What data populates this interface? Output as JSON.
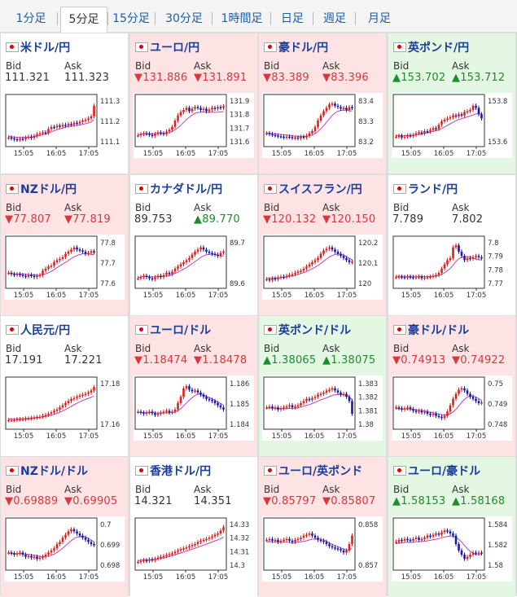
{
  "tabs": [
    {
      "label": "1分足",
      "active": false
    },
    {
      "label": "5分足",
      "active": true
    },
    {
      "label": "15分足",
      "active": false
    },
    {
      "label": "30分足",
      "active": false
    },
    {
      "label": "1時間足",
      "active": false
    },
    {
      "label": "日足",
      "active": false
    },
    {
      "label": "週足",
      "active": false
    },
    {
      "label": "月足",
      "active": false
    }
  ],
  "colors": {
    "down": "#d9363e",
    "up": "#1e8c2d",
    "link": "#1b3e9a",
    "candle_up": "#e02020",
    "candle_down": "#1a1aa8",
    "ma": "#c040c0"
  },
  "labels": {
    "bid": "Bid",
    "ask": "Ask"
  },
  "time_ticks": [
    "15:05",
    "16:05",
    "17:05"
  ],
  "pairs": [
    {
      "name": "米ドル/円",
      "flag": "us-flag-icon",
      "trend": "neutral",
      "bid": "111.321",
      "ask": "111.323",
      "bid_dir": "",
      "ask_dir": "",
      "y_ticks": [
        "111.3",
        "111.2",
        "111.1"
      ],
      "shape": [
        0.1,
        0.08,
        0.06,
        0.05,
        0.07,
        0.06,
        0.1,
        0.12,
        0.09,
        0.14,
        0.18,
        0.2,
        0.22,
        0.21,
        0.3,
        0.35,
        0.34,
        0.38,
        0.36,
        0.4,
        0.38,
        0.42,
        0.4,
        0.45,
        0.43,
        0.47,
        0.5,
        0.52,
        0.55,
        0.6,
        0.85
      ]
    },
    {
      "name": "ユーロ/円",
      "flag": "eu-flag-icon",
      "trend": "down",
      "bid": "▼131.886",
      "ask": "▼131.891",
      "bid_dir": "down",
      "ask_dir": "down",
      "y_ticks": [
        "131.9",
        "131.8",
        "131.7",
        "131.6"
      ],
      "shape": [
        0.15,
        0.18,
        0.2,
        0.19,
        0.16,
        0.14,
        0.18,
        0.22,
        0.2,
        0.18,
        0.24,
        0.28,
        0.35,
        0.5,
        0.62,
        0.7,
        0.75,
        0.8,
        0.72,
        0.78,
        0.82,
        0.8,
        0.75,
        0.78,
        0.72,
        0.76,
        0.8,
        0.78,
        0.82,
        0.8,
        0.84
      ]
    },
    {
      "name": "豪ドル/円",
      "flag": "au-flag-icon",
      "trend": "down",
      "bid": "▼83.389",
      "ask": "▼83.396",
      "bid_dir": "down",
      "ask_dir": "down",
      "y_ticks": [
        "83.4",
        "83.3",
        "83.2"
      ],
      "shape": [
        0.2,
        0.18,
        0.16,
        0.15,
        0.13,
        0.12,
        0.1,
        0.12,
        0.11,
        0.09,
        0.1,
        0.08,
        0.12,
        0.1,
        0.14,
        0.2,
        0.25,
        0.35,
        0.5,
        0.62,
        0.72,
        0.8,
        0.88,
        0.9,
        0.85,
        0.82,
        0.78,
        0.8,
        0.75,
        0.82,
        0.8
      ]
    },
    {
      "name": "英ポンド/円",
      "flag": "gb-flag-icon",
      "trend": "up",
      "bid": "▲153.702",
      "ask": "▲153.712",
      "bid_dir": "up",
      "ask_dir": "up",
      "y_ticks": [
        "153.8",
        "153.6"
      ],
      "shape": [
        0.12,
        0.14,
        0.1,
        0.12,
        0.15,
        0.14,
        0.16,
        0.2,
        0.22,
        0.2,
        0.25,
        0.24,
        0.28,
        0.32,
        0.3,
        0.4,
        0.48,
        0.52,
        0.55,
        0.58,
        0.62,
        0.6,
        0.65,
        0.62,
        0.7,
        0.72,
        0.75,
        0.85,
        0.8,
        0.65,
        0.55
      ]
    },
    {
      "name": "NZドル/円",
      "flag": "nz-flag-icon",
      "trend": "down",
      "bid": "▼77.807",
      "ask": "▼77.819",
      "bid_dir": "down",
      "ask_dir": "down",
      "y_ticks": [
        "77.8",
        "77.7",
        "77.6"
      ],
      "shape": [
        0.25,
        0.22,
        0.2,
        0.22,
        0.2,
        0.18,
        0.16,
        0.2,
        0.18,
        0.15,
        0.18,
        0.2,
        0.3,
        0.35,
        0.4,
        0.42,
        0.5,
        0.55,
        0.58,
        0.62,
        0.7,
        0.75,
        0.8,
        0.85,
        0.8,
        0.78,
        0.75,
        0.7,
        0.72,
        0.76,
        0.74
      ]
    },
    {
      "name": "カナダドル/円",
      "flag": "ca-flag-icon",
      "trend": "neutral",
      "bid": "89.753",
      "ask": "▲89.770",
      "bid_dir": "",
      "ask_dir": "up",
      "y_ticks": [
        "89.7",
        "89.6"
      ],
      "shape": [
        0.12,
        0.15,
        0.18,
        0.15,
        0.12,
        0.1,
        0.14,
        0.18,
        0.15,
        0.2,
        0.25,
        0.22,
        0.28,
        0.35,
        0.4,
        0.45,
        0.5,
        0.55,
        0.6,
        0.68,
        0.75,
        0.8,
        0.85,
        0.8,
        0.75,
        0.72,
        0.7,
        0.68,
        0.65,
        0.72,
        0.75
      ]
    },
    {
      "name": "スイスフラン/円",
      "flag": "ch-flag-icon",
      "trend": "down",
      "bid": "▼120.132",
      "ask": "▼120.150",
      "bid_dir": "down",
      "ask_dir": "down",
      "y_ticks": [
        "120.2",
        "120.1",
        "120"
      ],
      "shape": [
        0.1,
        0.08,
        0.12,
        0.1,
        0.14,
        0.16,
        0.15,
        0.18,
        0.2,
        0.22,
        0.25,
        0.28,
        0.3,
        0.35,
        0.4,
        0.45,
        0.5,
        0.55,
        0.6,
        0.7,
        0.78,
        0.82,
        0.85,
        0.8,
        0.75,
        0.7,
        0.65,
        0.6,
        0.55,
        0.5,
        0.52
      ]
    },
    {
      "name": "ランド/円",
      "flag": "za-flag-icon",
      "trend": "neutral",
      "bid": "7.789",
      "ask": "7.802",
      "bid_dir": "",
      "ask_dir": "",
      "y_ticks": [
        "7.8",
        "7.79",
        "7.78",
        "7.77"
      ],
      "shape": [
        0.15,
        0.16,
        0.15,
        0.14,
        0.16,
        0.15,
        0.14,
        0.15,
        0.16,
        0.12,
        0.14,
        0.15,
        0.16,
        0.18,
        0.2,
        0.25,
        0.35,
        0.45,
        0.55,
        0.6,
        0.85,
        0.9,
        0.75,
        0.65,
        0.55,
        0.6,
        0.58,
        0.62,
        0.65,
        0.62,
        0.6
      ]
    },
    {
      "name": "人民元/円",
      "flag": "cn-flag-icon",
      "trend": "neutral",
      "bid": "17.191",
      "ask": "17.221",
      "bid_dir": "",
      "ask_dir": "",
      "y_ticks": [
        "17.18",
        "17.16"
      ],
      "shape": [
        0.1,
        0.1,
        0.1,
        0.12,
        0.12,
        0.12,
        0.14,
        0.14,
        0.15,
        0.16,
        0.17,
        0.18,
        0.2,
        0.22,
        0.25,
        0.28,
        0.32,
        0.35,
        0.4,
        0.45,
        0.5,
        0.55,
        0.6,
        0.62,
        0.65,
        0.68,
        0.7,
        0.72,
        0.75,
        0.8,
        0.88
      ]
    },
    {
      "name": "ユーロ/ドル",
      "flag": "eu-flag-icon",
      "trend": "down",
      "bid": "▼1.18474",
      "ask": "▼1.18478",
      "bid_dir": "down",
      "ask_dir": "down",
      "y_ticks": [
        "1.186",
        "1.185",
        "1.184"
      ],
      "shape": [
        0.3,
        0.28,
        0.25,
        0.28,
        0.3,
        0.26,
        0.22,
        0.25,
        0.28,
        0.3,
        0.32,
        0.28,
        0.3,
        0.35,
        0.5,
        0.65,
        0.85,
        0.9,
        0.82,
        0.78,
        0.8,
        0.75,
        0.7,
        0.65,
        0.6,
        0.58,
        0.55,
        0.5,
        0.45,
        0.4,
        0.35
      ]
    },
    {
      "name": "英ポンド/ドル",
      "flag": "gb-flag-icon",
      "trend": "up",
      "bid": "▲1.38065",
      "ask": "▲1.38075",
      "bid_dir": "up",
      "ask_dir": "up",
      "y_ticks": [
        "1.383",
        "1.382",
        "1.381",
        "1.38"
      ],
      "shape": [
        0.4,
        0.42,
        0.38,
        0.4,
        0.35,
        0.38,
        0.4,
        0.42,
        0.45,
        0.4,
        0.42,
        0.45,
        0.5,
        0.55,
        0.6,
        0.58,
        0.62,
        0.65,
        0.7,
        0.72,
        0.75,
        0.8,
        0.82,
        0.85,
        0.8,
        0.75,
        0.7,
        0.72,
        0.65,
        0.55,
        0.25
      ]
    },
    {
      "name": "豪ドル/ドル",
      "flag": "au-flag-icon",
      "trend": "down",
      "bid": "▼0.74913",
      "ask": "▼0.74922",
      "bid_dir": "down",
      "ask_dir": "down",
      "y_ticks": [
        "0.75",
        "0.749",
        "0.748"
      ],
      "shape": [
        0.4,
        0.38,
        0.35,
        0.38,
        0.4,
        0.36,
        0.32,
        0.3,
        0.32,
        0.28,
        0.3,
        0.25,
        0.22,
        0.25,
        0.2,
        0.18,
        0.15,
        0.2,
        0.3,
        0.45,
        0.6,
        0.72,
        0.82,
        0.85,
        0.8,
        0.72,
        0.65,
        0.6,
        0.55,
        0.5,
        0.52
      ]
    },
    {
      "name": "NZドル/ドル",
      "flag": "nz-flag-icon",
      "trend": "down",
      "bid": "▼0.69889",
      "ask": "▼0.69905",
      "bid_dir": "down",
      "ask_dir": "down",
      "y_ticks": [
        "0.7",
        "0.699",
        "0.698"
      ],
      "shape": [
        0.3,
        0.28,
        0.25,
        0.28,
        0.3,
        0.25,
        0.2,
        0.22,
        0.18,
        0.2,
        0.15,
        0.18,
        0.2,
        0.25,
        0.3,
        0.35,
        0.4,
        0.5,
        0.55,
        0.65,
        0.72,
        0.8,
        0.85,
        0.8,
        0.75,
        0.7,
        0.65,
        0.6,
        0.55,
        0.5,
        0.48
      ]
    },
    {
      "name": "香港ドル/円",
      "flag": "hk-flag-icon",
      "trend": "neutral",
      "bid": "14.321",
      "ask": "14.351",
      "bid_dir": "",
      "ask_dir": "",
      "y_ticks": [
        "14.33",
        "14.32",
        "14.31",
        "14.3"
      ],
      "shape": [
        0.08,
        0.1,
        0.12,
        0.1,
        0.14,
        0.12,
        0.15,
        0.18,
        0.2,
        0.22,
        0.24,
        0.26,
        0.28,
        0.32,
        0.35,
        0.38,
        0.4,
        0.42,
        0.45,
        0.48,
        0.5,
        0.55,
        0.58,
        0.6,
        0.62,
        0.65,
        0.68,
        0.72,
        0.75,
        0.82,
        0.9
      ]
    },
    {
      "name": "ユーロ/英ポンド",
      "flag": "eu-flag-icon",
      "trend": "down",
      "bid": "▼0.85797",
      "ask": "▼0.85807",
      "bid_dir": "down",
      "ask_dir": "down",
      "y_ticks": [
        "0.858",
        "0.857"
      ],
      "shape": [
        0.6,
        0.62,
        0.58,
        0.6,
        0.55,
        0.58,
        0.6,
        0.62,
        0.58,
        0.55,
        0.6,
        0.62,
        0.65,
        0.7,
        0.72,
        0.75,
        0.7,
        0.65,
        0.6,
        0.58,
        0.55,
        0.5,
        0.45,
        0.42,
        0.4,
        0.38,
        0.35,
        0.3,
        0.35,
        0.5,
        0.7
      ]
    },
    {
      "name": "ユーロ/豪ドル",
      "flag": "eu-flag-icon",
      "trend": "up",
      "bid": "▲1.58153",
      "ask": "▲1.58168",
      "bid_dir": "up",
      "ask_dir": "up",
      "y_ticks": [
        "1.584",
        "1.582",
        "1.58"
      ],
      "shape": [
        0.55,
        0.6,
        0.58,
        0.62,
        0.6,
        0.58,
        0.62,
        0.65,
        0.6,
        0.62,
        0.65,
        0.7,
        0.68,
        0.72,
        0.75,
        0.72,
        0.78,
        0.82,
        0.8,
        0.75,
        0.7,
        0.5,
        0.35,
        0.25,
        0.15,
        0.2,
        0.25,
        0.3,
        0.28,
        0.3,
        0.28
      ]
    }
  ]
}
